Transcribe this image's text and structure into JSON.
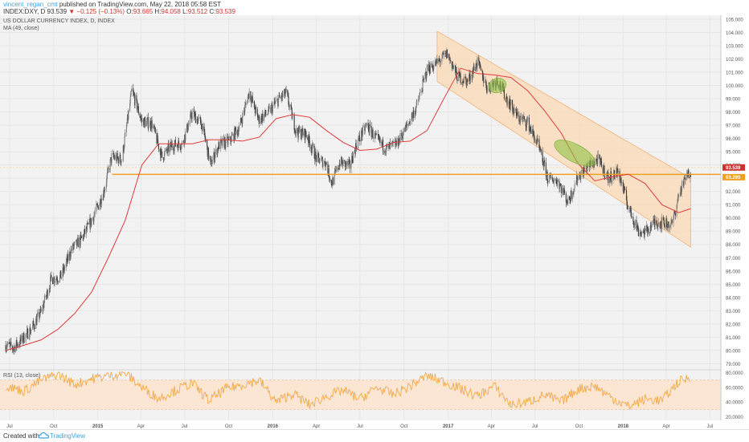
{
  "header": {
    "author": "vincent_regan_cmt",
    "published_text": "published on TradingView.com, May 22, 2018 05:58 EST",
    "symbol_line": "INDEX:DXY, D",
    "last_price": "93.539",
    "change_arrow": "▼",
    "change_text": "−0.125 (−0.13%)",
    "open_label": "O:",
    "open": "93.665",
    "high_label": "H:",
    "high": "94.058",
    "low_label": "L:",
    "low": "93.512",
    "close_label": "C:",
    "close": "93.539"
  },
  "legend": {
    "instrument": "US DOLLAR CURRENCY INDEX, D, INDEX",
    "ma_label": "MA (49, close)",
    "rsi_label": "RSI (13, close)"
  },
  "colors": {
    "up_candle": "#7d7d7d",
    "down_candle": "#3a3a3a",
    "ma_line": "#e23b3b",
    "support_line": "#f0a020",
    "channel_fill": "#fbd9b4",
    "ellipse_fill": "#8fbf45",
    "rsi_line": "#f2a33a",
    "rsi_band": "#fbe4cc",
    "price_badge": "#d0312d",
    "support_badge": "#f0a020"
  },
  "footer": {
    "created_with": "Created with",
    "brand": "TradingView",
    "brand_icon": "tradingview-cloud-icon"
  },
  "chart_data": [
    {
      "type": "line",
      "title": "US DOLLAR CURRENCY INDEX, D, INDEX",
      "x_ticks": [
        "Jul",
        "Oct",
        "2015",
        "Apr",
        "Jul",
        "Oct",
        "2016",
        "Apr",
        "Jul",
        "Oct",
        "2017",
        "Apr",
        "Jul",
        "Oct",
        "2018",
        "Apr",
        "Jul"
      ],
      "y_ticks": [
        "105.000",
        "104.000",
        "103.000",
        "102.000",
        "101.000",
        "100.000",
        "99.000",
        "98.000",
        "97.000",
        "96.000",
        "95.000",
        "94.000",
        "93.000",
        "92.000",
        "91.000",
        "90.000",
        "89.000",
        "88.000",
        "87.000",
        "86.000",
        "85.000",
        "84.000",
        "83.000",
        "82.000",
        "81.000",
        "80.000",
        "79.000"
      ],
      "ylim": [
        78.6,
        105.3
      ],
      "series": [
        {
          "name": "INDEX:DXY",
          "kind": "close",
          "x": [
            "2014-06-23",
            "2014-07-08",
            "2014-07-24",
            "2014-08-15",
            "2014-09-05",
            "2014-09-26",
            "2014-10-17",
            "2014-11-07",
            "2014-11-28",
            "2014-12-19",
            "2015-01-12",
            "2015-01-30",
            "2015-02-20",
            "2015-03-13",
            "2015-04-03",
            "2015-04-24",
            "2015-05-15",
            "2015-06-05",
            "2015-06-26",
            "2015-07-17",
            "2015-08-07",
            "2015-08-24",
            "2015-09-11",
            "2015-10-02",
            "2015-10-23",
            "2015-11-13",
            "2015-12-02",
            "2015-12-24",
            "2016-01-15",
            "2016-01-29",
            "2016-02-19",
            "2016-03-11",
            "2016-04-01",
            "2016-04-22",
            "2016-05-03",
            "2016-05-20",
            "2016-06-10",
            "2016-06-24",
            "2016-07-15",
            "2016-08-05",
            "2016-08-26",
            "2016-09-16",
            "2016-10-07",
            "2016-10-28",
            "2016-11-18",
            "2016-12-09",
            "2016-12-30",
            "2017-01-20",
            "2017-02-10",
            "2017-03-03",
            "2017-03-24",
            "2017-04-14",
            "2017-05-05",
            "2017-05-26",
            "2017-06-16",
            "2017-07-07",
            "2017-07-28",
            "2017-08-18",
            "2017-09-08",
            "2017-09-29",
            "2017-10-20",
            "2017-11-10",
            "2017-12-01",
            "2017-12-22",
            "2018-01-12",
            "2018-02-02",
            "2018-02-16",
            "2018-03-09",
            "2018-03-30",
            "2018-04-13",
            "2018-04-27",
            "2018-05-11",
            "2018-05-22"
          ],
          "values": [
            80.4,
            80.2,
            80.7,
            81.6,
            82.9,
            85.4,
            85.6,
            87.6,
            88.4,
            89.8,
            91.8,
            94.6,
            94.4,
            99.6,
            97.3,
            97.1,
            94.6,
            95.5,
            95.6,
            97.9,
            97.0,
            94.0,
            95.5,
            95.8,
            96.8,
            99.5,
            97.4,
            98.0,
            99.0,
            99.4,
            96.5,
            96.3,
            94.5,
            94.1,
            92.6,
            94.2,
            93.9,
            95.6,
            97.0,
            95.9,
            95.2,
            95.6,
            96.9,
            98.5,
            101.2,
            101.7,
            102.4,
            100.7,
            100.3,
            101.7,
            99.8,
            100.4,
            98.9,
            97.6,
            97.2,
            95.5,
            93.0,
            92.8,
            91.2,
            93.1,
            93.9,
            94.4,
            93.0,
            93.5,
            90.8,
            89.0,
            88.9,
            89.7,
            89.6,
            89.5,
            91.7,
            93.0,
            93.54
          ]
        },
        {
          "name": "MA (49, close)",
          "kind": "moving-average",
          "x": [
            "2014-06-23",
            "2014-08-01",
            "2014-09-05",
            "2014-10-10",
            "2014-11-14",
            "2014-12-19",
            "2015-01-23",
            "2015-02-27",
            "2015-04-03",
            "2015-05-08",
            "2015-06-12",
            "2015-07-17",
            "2015-08-21",
            "2015-09-25",
            "2015-10-30",
            "2015-12-04",
            "2016-01-08",
            "2016-02-12",
            "2016-03-18",
            "2016-04-22",
            "2016-05-27",
            "2016-07-01",
            "2016-08-05",
            "2016-09-09",
            "2016-10-14",
            "2016-11-18",
            "2016-12-23",
            "2017-01-27",
            "2017-03-03",
            "2017-04-07",
            "2017-05-12",
            "2017-06-16",
            "2017-07-21",
            "2017-08-25",
            "2017-09-29",
            "2017-11-03",
            "2017-12-08",
            "2018-01-12",
            "2018-02-16",
            "2018-03-23",
            "2018-04-27",
            "2018-05-22"
          ],
          "values": [
            80.0,
            80.4,
            80.8,
            81.6,
            82.8,
            84.4,
            87.0,
            89.8,
            94.0,
            95.6,
            95.6,
            95.6,
            95.9,
            95.9,
            95.8,
            96.1,
            97.5,
            97.8,
            97.6,
            96.6,
            95.7,
            95.1,
            95.2,
            95.7,
            95.8,
            96.6,
            99.0,
            101.3,
            100.9,
            100.8,
            100.6,
            99.6,
            98.1,
            96.4,
            94.1,
            92.8,
            93.1,
            93.3,
            92.6,
            91.0,
            90.4,
            90.7
          ]
        }
      ],
      "annotations": [
        {
          "type": "horizontal-line",
          "label": "support",
          "value": 93.29
        },
        {
          "type": "descending-channel",
          "upper": [
            [
              "2016-12-09",
              104.1
            ],
            [
              "2018-05-22",
              93.0
            ]
          ],
          "lower": [
            [
              "2016-12-09",
              100.3
            ],
            [
              "2018-05-22",
              87.8
            ]
          ]
        },
        {
          "type": "ellipse",
          "center": [
            "2017-04-14",
            100.0
          ]
        },
        {
          "type": "ellipse",
          "center": [
            "2017-09-22",
            94.9
          ]
        }
      ],
      "price_labels": [
        {
          "name": "last",
          "text": "93.539",
          "value": 93.539
        },
        {
          "name": "support",
          "text": "93.290",
          "value": 93.29
        }
      ]
    },
    {
      "type": "line",
      "title": "RSI (13, close)",
      "y_ticks": [
        "80.0000",
        "60.0000",
        "40.0000",
        "20.0000"
      ],
      "ylim": [
        15,
        83
      ],
      "band": [
        30,
        70
      ],
      "series": [
        {
          "name": "RSI (13, close)",
          "x": [
            "2014-06-23",
            "2014-07-31",
            "2014-09-05",
            "2014-10-10",
            "2014-11-14",
            "2014-12-19",
            "2015-01-23",
            "2015-02-27",
            "2015-04-03",
            "2015-05-08",
            "2015-06-12",
            "2015-07-17",
            "2015-08-21",
            "2015-09-25",
            "2015-10-30",
            "2015-12-04",
            "2016-01-08",
            "2016-02-12",
            "2016-03-18",
            "2016-04-22",
            "2016-05-27",
            "2016-07-01",
            "2016-08-05",
            "2016-09-09",
            "2016-10-14",
            "2016-11-18",
            "2016-12-23",
            "2017-01-27",
            "2017-03-03",
            "2017-04-07",
            "2017-05-12",
            "2017-06-16",
            "2017-07-21",
            "2017-08-25",
            "2017-09-29",
            "2017-11-03",
            "2017-12-08",
            "2018-01-12",
            "2018-02-16",
            "2018-03-23",
            "2018-04-27",
            "2018-05-22"
          ],
          "values": [
            62,
            55,
            70,
            78,
            64,
            72,
            76,
            80,
            60,
            45,
            56,
            66,
            42,
            58,
            64,
            70,
            40,
            52,
            36,
            48,
            56,
            44,
            60,
            50,
            62,
            76,
            68,
            58,
            48,
            62,
            36,
            40,
            50,
            40,
            58,
            62,
            46,
            34,
            44,
            42,
            68,
            74
          ]
        }
      ]
    }
  ]
}
